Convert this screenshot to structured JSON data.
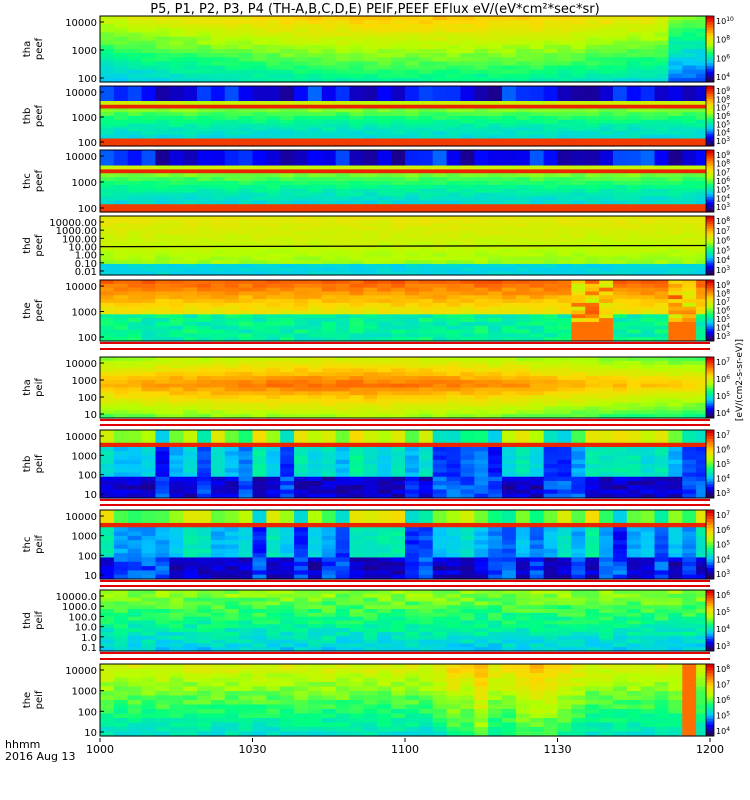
{
  "title": "P5, P1, P2, P3, P4 (TH-A,B,C,D,E) PEIF,PEEF EFlux eV/(eV*cm²*sec*sr)",
  "footer": {
    "time_label": "hhmm",
    "date_label": "2016 Aug 13"
  },
  "colorbar_unit": "[eV/(cm2-s-sr-eV)]",
  "chart_data": {
    "type": "heatmap",
    "x_axis": {
      "range": [
        "1000",
        "1200"
      ],
      "tick_labels": [
        "1000",
        "1030",
        "1100",
        "1130",
        "1200"
      ]
    },
    "colormap": [
      "#2a0050",
      "#0000ff",
      "#00c8ff",
      "#00ff80",
      "#b4ff00",
      "#ffd700",
      "#ff6a00",
      "#e00000"
    ],
    "panels": [
      {
        "probe": "tha",
        "species": "peef",
        "ylabel": [
          "tha",
          "peef"
        ],
        "yticks": [
          "10000",
          "1000",
          "100"
        ],
        "cbar_ticks": [
          "10^10",
          "10^8",
          "10^6",
          "10^4"
        ],
        "pattern": "smooth_a"
      },
      {
        "probe": "thb",
        "species": "peef",
        "ylabel": [
          "thb",
          "peef"
        ],
        "yticks": [
          "10000",
          "1000",
          "100"
        ],
        "cbar_ticks": [
          "10^9",
          "10^8",
          "10^7",
          "10^6",
          "10^5",
          "10^4",
          "10^3"
        ],
        "pattern": "bands_eb"
      },
      {
        "probe": "thc",
        "species": "peef",
        "ylabel": [
          "thc",
          "peef"
        ],
        "yticks": [
          "10000",
          "1000",
          "100"
        ],
        "cbar_ticks": [
          "10^9",
          "10^8",
          "10^7",
          "10^6",
          "10^5",
          "10^4",
          "10^3"
        ],
        "pattern": "bands_ec"
      },
      {
        "probe": "thd",
        "species": "peef",
        "ylabel": [
          "thd",
          "peef"
        ],
        "yticks": [
          "10000.00",
          "1000.00",
          "100.00",
          "10.00",
          "1.00",
          "0.10",
          "0.01"
        ],
        "cbar_ticks": [
          "10^8",
          "10^7",
          "10^6",
          "10^5",
          "10^4",
          "10^3"
        ],
        "pattern": "flat_d"
      },
      {
        "probe": "the",
        "species": "peef",
        "ylabel": [
          "the",
          "peef"
        ],
        "yticks": [
          "10000",
          "1000",
          "100"
        ],
        "cbar_ticks": [
          "10^9",
          "10^8",
          "10^7",
          "10^6",
          "10^5",
          "10^4",
          "10^3"
        ],
        "pattern": "bursty_e"
      },
      {
        "probe": "tha",
        "species": "peif",
        "ylabel": [
          "tha",
          "peif"
        ],
        "yticks": [
          "10000",
          "1000",
          "100",
          "10"
        ],
        "cbar_ticks": [
          "10^7",
          "10^6",
          "10^5",
          "10^4"
        ],
        "pattern": "smooth_ia"
      },
      {
        "probe": "thb",
        "species": "peif",
        "ylabel": [
          "thb",
          "peif"
        ],
        "yticks": [
          "10000",
          "1000",
          "100",
          "10"
        ],
        "cbar_ticks": [
          "10^7",
          "10^6",
          "10^5",
          "10^4",
          "10^3"
        ],
        "pattern": "bands_ib"
      },
      {
        "probe": "thc",
        "species": "peif",
        "ylabel": [
          "thc",
          "peif"
        ],
        "yticks": [
          "10000",
          "1000",
          "100",
          "10"
        ],
        "cbar_ticks": [
          "10^7",
          "10^6",
          "10^5",
          "10^4",
          "10^3"
        ],
        "pattern": "bands_ic"
      },
      {
        "probe": "thd",
        "species": "peif",
        "ylabel": [
          "thd",
          "peif"
        ],
        "yticks": [
          "10000.0",
          "1000.0",
          "100.0",
          "10.0",
          "1.0",
          "0.1"
        ],
        "cbar_ticks": [
          "10^6",
          "10^5",
          "10^4",
          "10^3"
        ],
        "pattern": "low_d"
      },
      {
        "probe": "the",
        "species": "peif",
        "ylabel": [
          "the",
          "peif"
        ],
        "yticks": [
          "10000",
          "1000",
          "100",
          "10"
        ],
        "cbar_ticks": [
          "10^8",
          "10^7",
          "10^6",
          "10^5",
          "10^4"
        ],
        "pattern": "bursty_ie"
      }
    ]
  }
}
